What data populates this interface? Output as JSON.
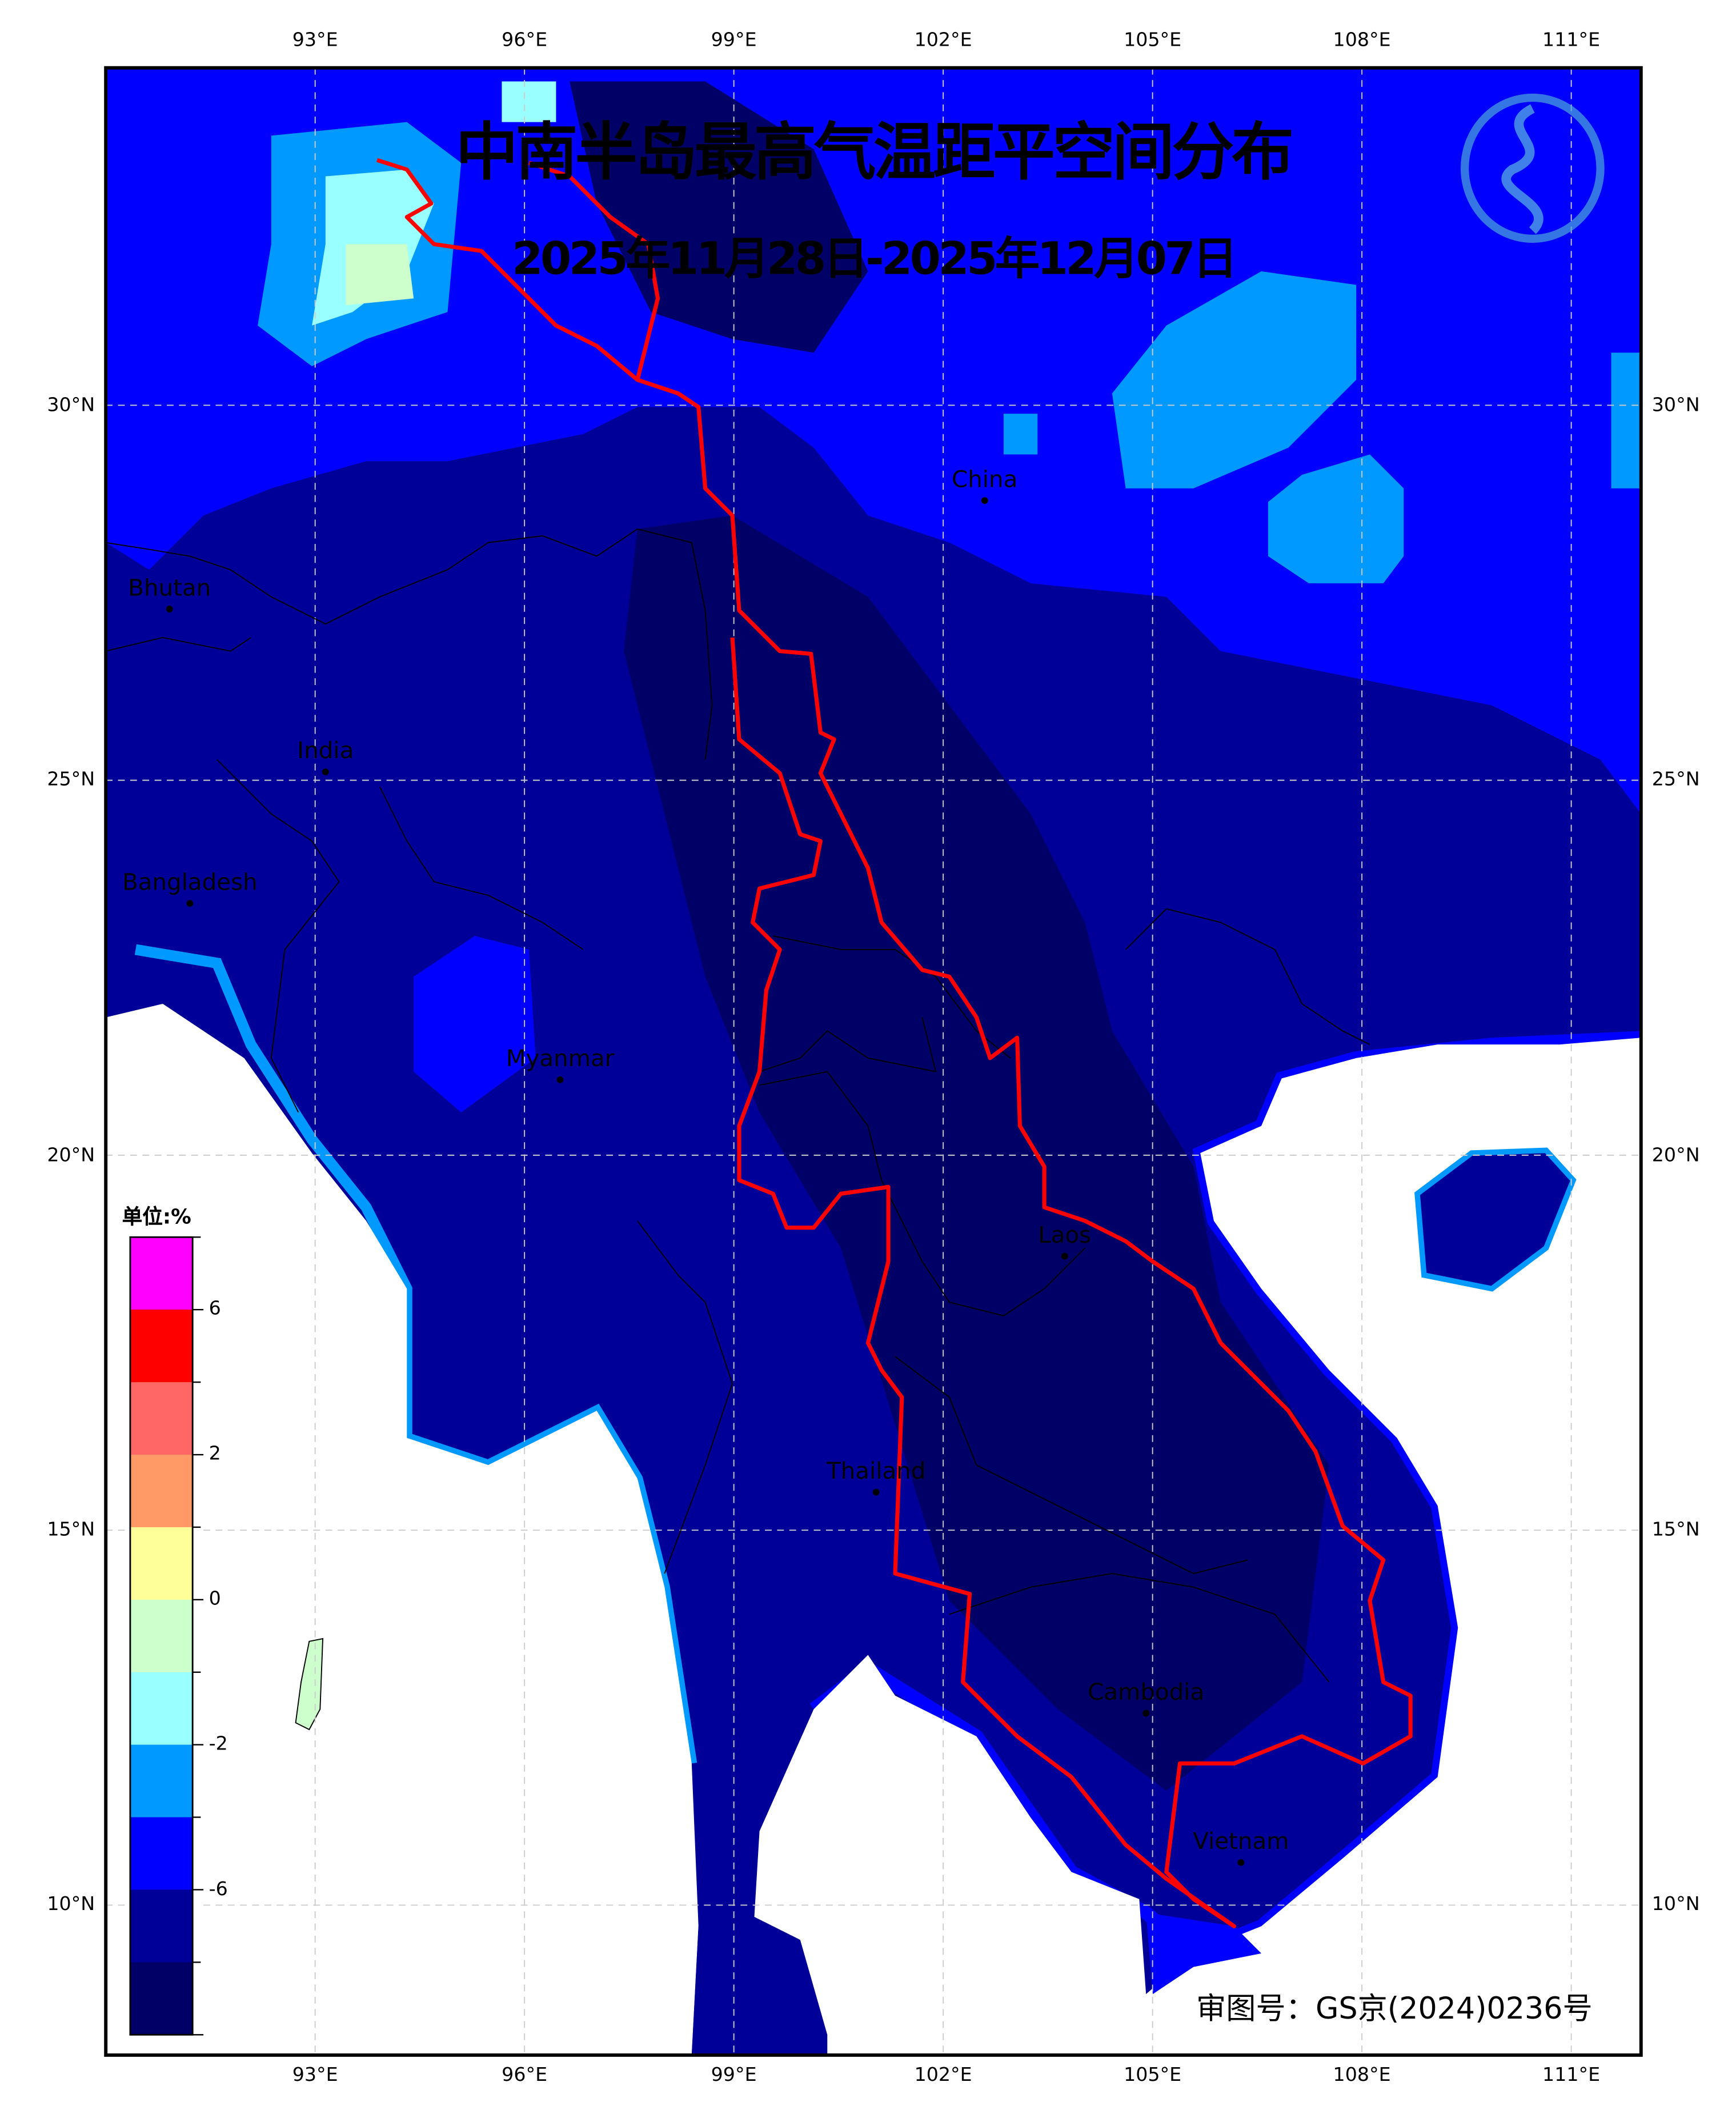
{
  "title": "中南半岛最高气温距平空间分布",
  "subtitle": "2025年11月28日-2025年12月07日",
  "approval_number": "审图号：GS京(2024)0236号",
  "logo": "CMA dragon emblem",
  "lon_ticks": [
    "93°E",
    "96°E",
    "99°E",
    "102°E",
    "105°E",
    "108°E",
    "111°E"
  ],
  "lat_ticks": [
    "30°N",
    "25°N",
    "20°N",
    "15°N",
    "10°N"
  ],
  "countries": [
    {
      "name": "China"
    },
    {
      "name": "Bhutan"
    },
    {
      "name": "India"
    },
    {
      "name": "Bangladesh"
    },
    {
      "name": "Myanmar"
    },
    {
      "name": "Laos"
    },
    {
      "name": "Thailand"
    },
    {
      "name": "Cambodia"
    },
    {
      "name": "Vietnam"
    }
  ],
  "colorbar": {
    "unit_label": "单位:%",
    "colors": [
      "#ff00ff",
      "#ff0000",
      "#ff6666",
      "#ff9966",
      "#ffff99",
      "#ccffcc",
      "#99ffff",
      "#0099ff",
      "#0000ff",
      "#000099",
      "#000066"
    ],
    "labels": [
      "6",
      "2",
      "0",
      "-2",
      "-6"
    ]
  },
  "colors": {
    "boundary": "#ff0000",
    "grid": "#cccccc"
  }
}
